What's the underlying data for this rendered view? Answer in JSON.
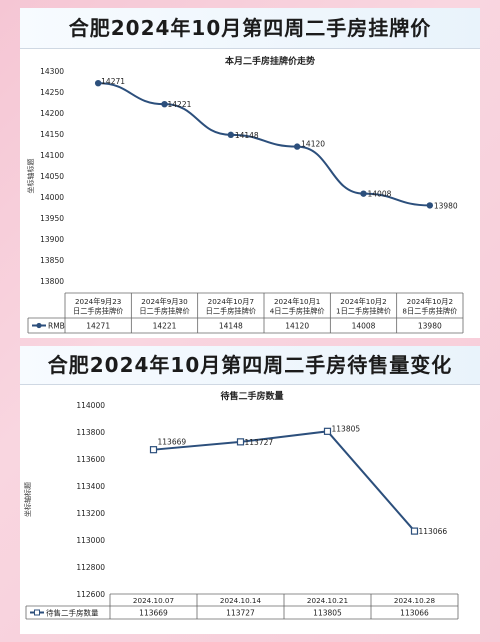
{
  "chart_data": [
    {
      "type": "line",
      "banner": "合肥2024年10月第四周二手房挂牌价",
      "title": "本月二手房挂牌价走势",
      "ylabel": "坐标轴标题",
      "ylim": [
        13800,
        14300
      ],
      "yticks": [
        13800,
        13850,
        13900,
        13950,
        14000,
        14050,
        14100,
        14150,
        14200,
        14250,
        14300
      ],
      "categories": [
        "2024年9月23日二手房挂牌价",
        "2024年9月30日二手房挂牌价",
        "2024年10月7日二手房挂牌价",
        "2024年10月14日二手房挂牌价",
        "2024年10月21日二手房挂牌价",
        "2024年10月28日二手房挂牌价"
      ],
      "series": [
        {
          "name": "RMB",
          "values": [
            14271,
            14221,
            14148,
            14120,
            14008,
            13980
          ]
        }
      ],
      "color": "#2c4f7c",
      "grid": false,
      "legend": "data-table"
    },
    {
      "type": "line",
      "banner": "合肥2024年10月第四周二手房待售量变化",
      "title": "待售二手房数量",
      "ylabel": "坐标轴标题",
      "ylim": [
        112600,
        114000
      ],
      "yticks": [
        112600,
        112800,
        113000,
        113200,
        113400,
        113600,
        113800,
        114000
      ],
      "categories": [
        "2024.10.07",
        "2024.10.14",
        "2024.10.21",
        "2024.10.28"
      ],
      "series": [
        {
          "name": "待售二手房数量",
          "values": [
            113669,
            113727,
            113805,
            113066
          ]
        }
      ],
      "color": "#2c4f7c",
      "grid": false,
      "legend": "data-table"
    }
  ]
}
